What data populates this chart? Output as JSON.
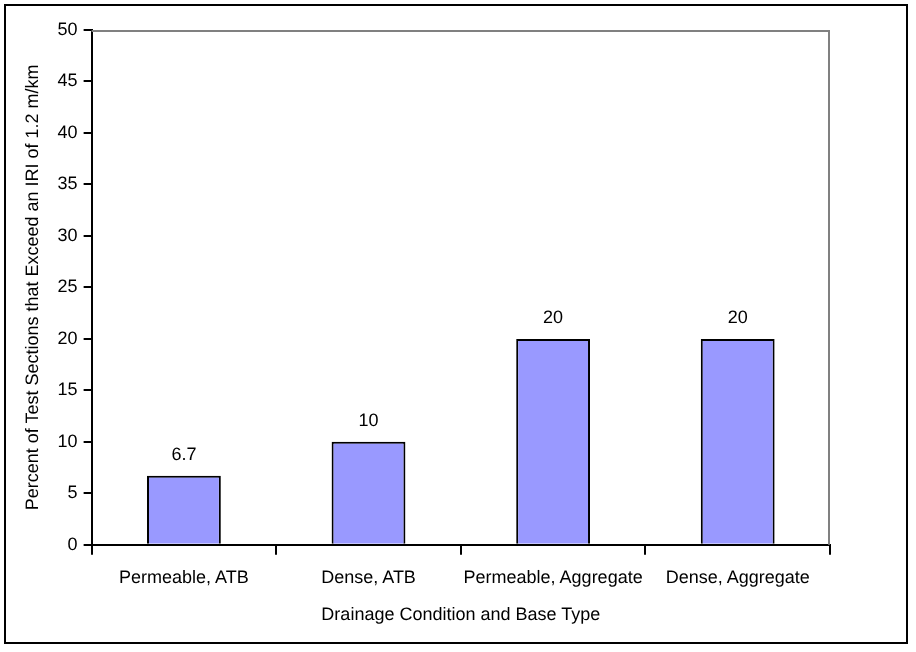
{
  "chart_data": {
    "type": "bar",
    "xlabel": "Drainage Condition and Base Type",
    "ylabel": "Percent of Test Sections that Exceed an IRI of 1.2 m/km",
    "categories": [
      "Permeable, ATB",
      "Dense, ATB",
      "Permeable, Aggregate",
      "Dense, Aggregate"
    ],
    "values": [
      6.7,
      10,
      20,
      20
    ],
    "color": "#9999ff",
    "ylim": [
      0,
      50
    ],
    "yticks": [
      0,
      5,
      10,
      15,
      20,
      25,
      30,
      35,
      40,
      45,
      50
    ],
    "grid": false,
    "legend": false,
    "data_labels": true
  }
}
